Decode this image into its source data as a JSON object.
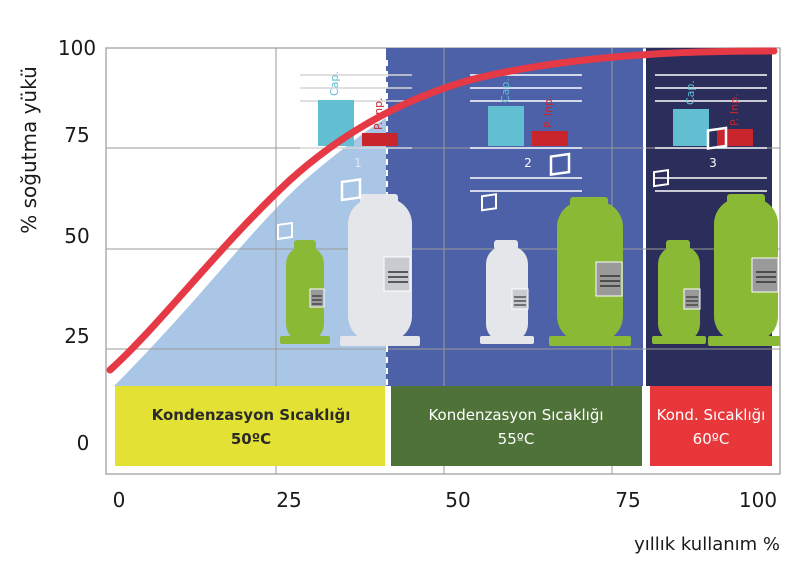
{
  "axes": {
    "y_title": "% soğutma yükü",
    "x_title": "yıllık kullanım %",
    "y_ticks": [
      "100",
      "75",
      "50",
      "25",
      "0"
    ],
    "x_ticks": [
      "0",
      "25",
      "50",
      "75",
      "100"
    ]
  },
  "regions": [
    {
      "label_line1": "Kondenzasyon Sıcaklığı",
      "label_line2": "50ºC",
      "color": "#e3e234",
      "zone_color": "#a9c6e6",
      "zone_number": "1"
    },
    {
      "label_line1": "Kondenzasyon Sıcaklığı",
      "label_line2": "55ºC",
      "color": "#4f7238",
      "zone_color": "#4c61a8",
      "zone_number": "2"
    },
    {
      "label_line1": "Kond. Sıcaklığı",
      "label_line2": "60ºC",
      "color": "#e8373a",
      "zone_color": "#2b2d5a",
      "zone_number": "3"
    }
  ],
  "mini_bars": {
    "cap_label": "Cap.",
    "pinp_label": "P. Inp.",
    "cap_color": "#62bfd2",
    "pinp_color": "#c8262c"
  },
  "colors": {
    "curve": "#e63946",
    "compressor_green": "#8ab936",
    "compressor_white": "#e4e6e9",
    "grid": "#9a9a9a"
  }
}
